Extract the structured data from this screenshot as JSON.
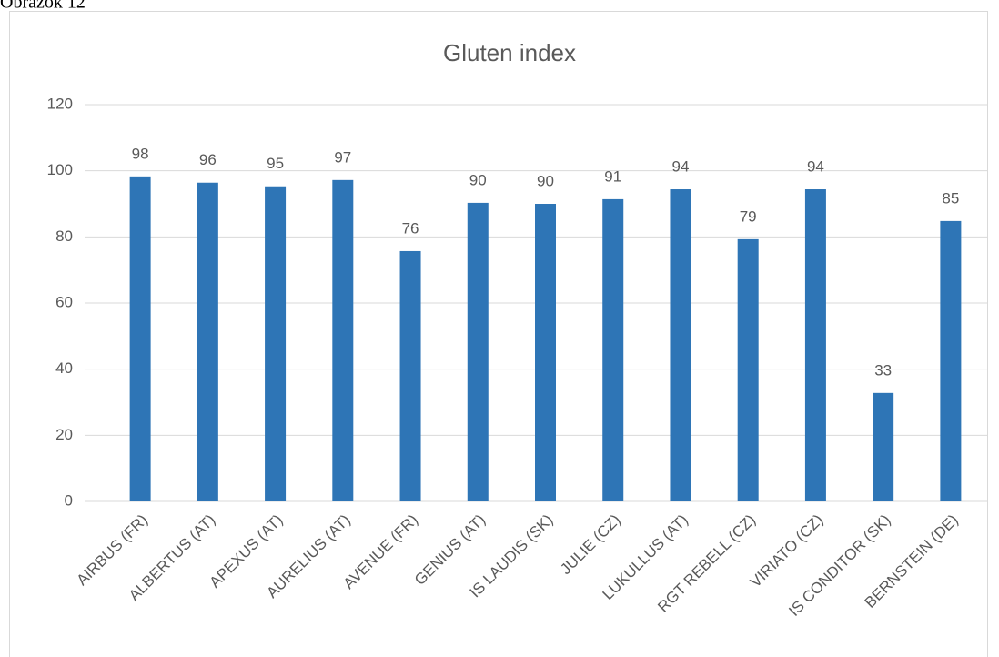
{
  "caption": "Obrázok 12",
  "chart_data": {
    "type": "bar",
    "title": "Gluten index",
    "categories": [
      "AIRBUS (FR)",
      "ALBERTUS (AT)",
      "APEXUS (AT)",
      "AURELIUS (AT)",
      "AVENUE (FR)",
      "GENIUS (AT)",
      "IS LAUDIS (SK)",
      "JULIE (CZ)",
      "LUKULLUS (AT)",
      "RGT REBELL (CZ)",
      "VIRIATO (CZ)",
      "IS CONDITOR (SK)",
      "BERNSTEIN (DE)"
    ],
    "values": [
      98.3,
      96.4,
      95.3,
      97.2,
      75.7,
      90.3,
      90.0,
      91.4,
      94.4,
      79.3,
      94.4,
      32.8,
      84.8
    ],
    "value_labels": [
      "98",
      "96",
      "95",
      "97",
      "76",
      "90",
      "90",
      "91",
      "94",
      "79",
      "94",
      "33",
      "85"
    ],
    "color": "#2e75b6",
    "ylim": [
      0,
      120
    ],
    "yticks": [
      0,
      20,
      40,
      60,
      80,
      100,
      120
    ],
    "grid": true
  }
}
